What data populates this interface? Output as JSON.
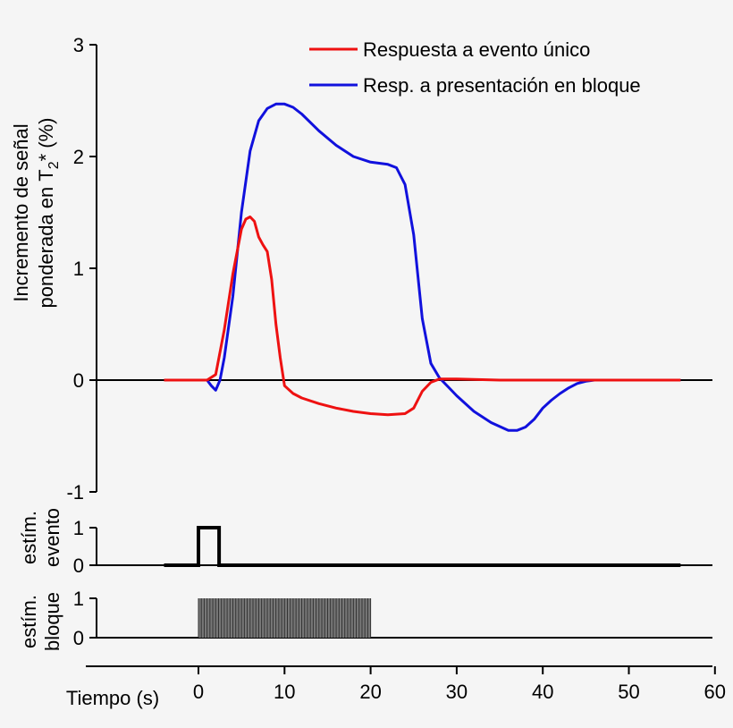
{
  "chart_data": [
    {
      "type": "line",
      "ylabel_line1": "Incremento de señal",
      "ylabel_line2_prefix": "ponderada en",
      "ylabel_symbol": "T",
      "ylabel_subscript": "2",
      "ylabel_suffix": "* (%)",
      "ylim": [
        -1,
        3
      ],
      "yticks": [
        "3",
        "2",
        "1",
        "0",
        "-1"
      ],
      "ytick_values": [
        3,
        2,
        1,
        0,
        -1
      ],
      "xlim": [
        -10,
        60
      ],
      "legend_position": "top-right",
      "colors": {
        "event": "#ee1111",
        "block": "#1111dd"
      },
      "series": [
        {
          "name": "Respuesta a evento único",
          "color": "#ee1111",
          "points": [
            [
              -4,
              0
            ],
            [
              1,
              0
            ],
            [
              2,
              0.05
            ],
            [
              3,
              0.45
            ],
            [
              4,
              0.95
            ],
            [
              5,
              1.35
            ],
            [
              5.5,
              1.44
            ],
            [
              6,
              1.46
            ],
            [
              6.5,
              1.42
            ],
            [
              7,
              1.28
            ],
            [
              7.5,
              1.21
            ],
            [
              8,
              1.15
            ],
            [
              8.5,
              0.9
            ],
            [
              9,
              0.5
            ],
            [
              9.5,
              0.2
            ],
            [
              10,
              -0.05
            ],
            [
              11,
              -0.12
            ],
            [
              12,
              -0.16
            ],
            [
              14,
              -0.21
            ],
            [
              16,
              -0.25
            ],
            [
              18,
              -0.28
            ],
            [
              20,
              -0.3
            ],
            [
              22,
              -0.31
            ],
            [
              24,
              -0.3
            ],
            [
              25,
              -0.25
            ],
            [
              26,
              -0.1
            ],
            [
              27,
              -0.02
            ],
            [
              28,
              0.01
            ],
            [
              30,
              0.01
            ],
            [
              35,
              0
            ],
            [
              40,
              0
            ],
            [
              45,
              0
            ],
            [
              50,
              0
            ],
            [
              55,
              0
            ],
            [
              56,
              0
            ]
          ]
        },
        {
          "name": "Resp. a presentación en bloque",
          "color": "#1111dd",
          "points": [
            [
              -4,
              0
            ],
            [
              1,
              0
            ],
            [
              1.5,
              -0.05
            ],
            [
              2,
              -0.09
            ],
            [
              2.5,
              0
            ],
            [
              3,
              0.2
            ],
            [
              4,
              0.75
            ],
            [
              5,
              1.5
            ],
            [
              6,
              2.05
            ],
            [
              7,
              2.32
            ],
            [
              8,
              2.43
            ],
            [
              9,
              2.47
            ],
            [
              10,
              2.47
            ],
            [
              11,
              2.44
            ],
            [
              12,
              2.38
            ],
            [
              14,
              2.23
            ],
            [
              16,
              2.1
            ],
            [
              18,
              2.0
            ],
            [
              20,
              1.95
            ],
            [
              22,
              1.93
            ],
            [
              23,
              1.9
            ],
            [
              24,
              1.75
            ],
            [
              25,
              1.3
            ],
            [
              26,
              0.55
            ],
            [
              27,
              0.15
            ],
            [
              28,
              0.02
            ],
            [
              29,
              -0.06
            ],
            [
              30,
              -0.14
            ],
            [
              32,
              -0.28
            ],
            [
              34,
              -0.38
            ],
            [
              36,
              -0.45
            ],
            [
              37,
              -0.45
            ],
            [
              38,
              -0.42
            ],
            [
              39,
              -0.35
            ],
            [
              40,
              -0.25
            ],
            [
              41,
              -0.18
            ],
            [
              42,
              -0.12
            ],
            [
              43,
              -0.07
            ],
            [
              44,
              -0.03
            ],
            [
              45,
              -0.01
            ],
            [
              46,
              0
            ],
            [
              50,
              0
            ],
            [
              56,
              0
            ]
          ]
        }
      ]
    },
    {
      "type": "line",
      "ylabel_line1": "estím.",
      "ylabel_line2": "evento",
      "ylim": [
        0,
        1
      ],
      "yticks": [
        "1",
        "0"
      ],
      "ytick_values": [
        1,
        0
      ],
      "series": [
        {
          "color": "#000000",
          "points": [
            [
              -4,
              0
            ],
            [
              0,
              0
            ],
            [
              0,
              1
            ],
            [
              2.4,
              1
            ],
            [
              2.4,
              0
            ],
            [
              56,
              0
            ]
          ]
        }
      ]
    },
    {
      "type": "bar",
      "ylabel_line1": "estím.",
      "ylabel_line2": "bloque",
      "ylim": [
        0,
        1
      ],
      "yticks": [
        "1",
        "0"
      ],
      "ytick_values": [
        1,
        0
      ],
      "block": {
        "start": 0,
        "end": 20,
        "value": 1,
        "stripes": 60,
        "fill": "#777777",
        "stripe_color": "#333333"
      }
    }
  ],
  "x_axis": {
    "label": "Tiempo (s)",
    "ticks": [
      "0",
      "10",
      "20",
      "30",
      "40",
      "50",
      "60"
    ],
    "tick_values": [
      0,
      10,
      20,
      30,
      40,
      50,
      60
    ]
  }
}
